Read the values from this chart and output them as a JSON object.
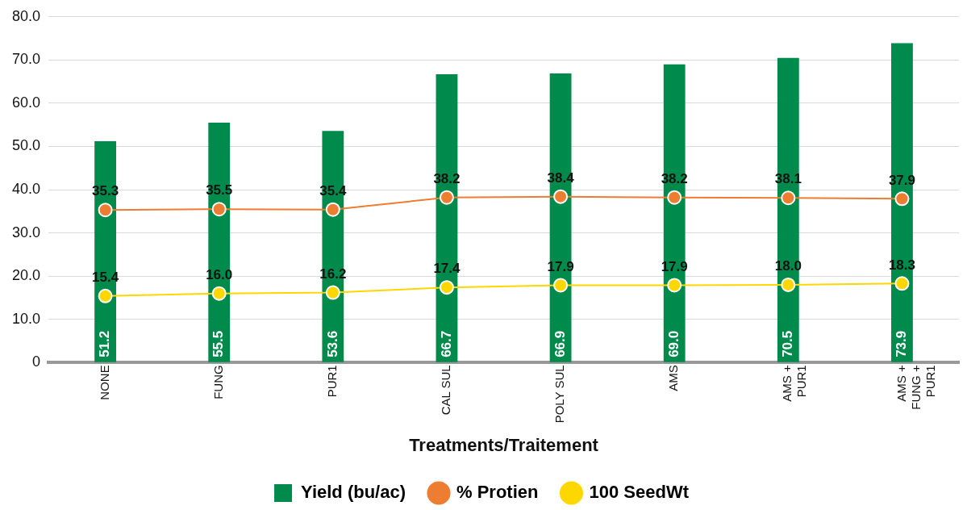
{
  "chart_data": {
    "type": "bar",
    "xlabel": "Treatments/Traitement",
    "categories": [
      "NONE",
      "FUNG",
      "PUR1",
      "CAL SUL",
      "POLY SUL",
      "AMS",
      "AMS +\nPUR1",
      "AMS +\nFUNG +\nPUR1"
    ],
    "series": [
      {
        "name": "Yield (bu/ac)",
        "color": "#008a4b",
        "values": [
          51.2,
          55.5,
          53.6,
          66.7,
          66.9,
          69.0,
          70.5,
          73.9
        ],
        "value_labels": [
          "51.2",
          "55.5",
          "53.6",
          "66.7",
          "66.9",
          "69.0",
          "70.5",
          "73.9"
        ]
      },
      {
        "name": "% Protien",
        "type": "line",
        "color": "#ed7d31",
        "values": [
          35.3,
          35.5,
          35.4,
          38.2,
          38.4,
          38.2,
          38.1,
          37.9
        ],
        "value_labels": [
          "35.3",
          "35.5",
          "35.4",
          "38.2",
          "38.4",
          "38.2",
          "38.1",
          "37.9"
        ]
      },
      {
        "name": "100 SeedWt",
        "type": "line",
        "color": "#ffd700",
        "values": [
          15.4,
          16.0,
          16.2,
          17.4,
          17.9,
          17.9,
          18.0,
          18.3
        ],
        "value_labels": [
          "15.4",
          "16.0",
          "16.2",
          "17.4",
          "17.9",
          "17.9",
          "18.0",
          "18.3"
        ]
      }
    ],
    "ylim": [
      0,
      80
    ],
    "yticks": [
      0,
      {
        "value": 10,
        "label": "10.0"
      },
      {
        "value": 20,
        "label": "20.0"
      },
      {
        "value": 30,
        "label": "30.0"
      },
      {
        "value": 40,
        "label": "40.0"
      },
      {
        "value": 50,
        "label": "50.0"
      },
      {
        "value": 60,
        "label": "60.0"
      },
      {
        "value": 70,
        "label": "70.0"
      },
      {
        "value": 80,
        "label": "80.0"
      }
    ],
    "grid": "y",
    "legend": "bottom",
    "marker": "circle",
    "line_style": "solid"
  }
}
